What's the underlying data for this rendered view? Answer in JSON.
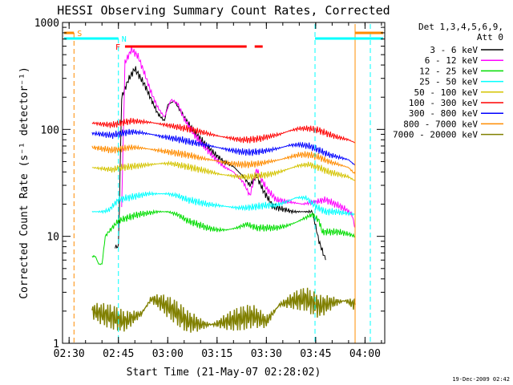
{
  "chart_data": {
    "type": "line",
    "title": "HESSI Observing Summary Count Rates, Corrected",
    "xlabel": "Start Time (21-May-07 02:28:02)",
    "ylabel": "Corrected Count Rate (s⁻¹ detector⁻¹)",
    "yscale": "log",
    "ylim": [
      1,
      1000
    ],
    "xlim": [
      "02:28",
      "04:06"
    ],
    "x_ticks": [
      "02:30",
      "02:45",
      "03:00",
      "03:15",
      "03:30",
      "03:45",
      "04:00"
    ],
    "y_ticks": [
      "1",
      "10",
      "100",
      "1000"
    ],
    "footer": "19-Dec-2009 02:42",
    "legend": {
      "placement": "right",
      "header": [
        "Det 1,3,4,5,6,9,",
        "Att 0"
      ],
      "entries": [
        {
          "label": "3 - 6 keV",
          "color": "#000000"
        },
        {
          "label": "6 - 12 keV",
          "color": "#ff00ff"
        },
        {
          "label": "12 - 25 keV",
          "color": "#00dd00"
        },
        {
          "label": "25 - 50 keV",
          "color": "#00ffff"
        },
        {
          "label": "50 - 100 keV",
          "color": "#d4c400"
        },
        {
          "label": "100 - 300 keV",
          "color": "#ff0000"
        },
        {
          "label": "300 - 800 keV",
          "color": "#0000ff"
        },
        {
          "label": "800 - 7000 keV",
          "color": "#ff8c00"
        },
        {
          "label": "7000 - 20000 keV",
          "color": "#808000"
        }
      ]
    },
    "annotations": [
      {
        "label": "S",
        "color": "#ff8c00",
        "x_start": "02:28",
        "x_end": "02:31"
      },
      {
        "label": "N",
        "color": "#00ffff",
        "x_start": "02:45",
        "x_end": "02:45"
      },
      {
        "label": "F",
        "color": "#ff0000",
        "x_start": "02:47",
        "x_end": "03:24"
      }
    ],
    "series": [
      {
        "name": "3 - 6 keV",
        "color": "#000000",
        "x": [
          "02:44",
          "02:45",
          "02:46",
          "02:48",
          "02:50",
          "02:51",
          "02:53",
          "02:55",
          "02:57",
          "02:59",
          "03:00",
          "03:02",
          "03:05",
          "03:08",
          "03:11",
          "03:14",
          "03:17",
          "03:20",
          "03:23",
          "03:25",
          "03:27",
          "03:29",
          "03:32",
          "03:35",
          "03:38",
          "03:41",
          "03:44",
          "03:46",
          "03:48"
        ],
        "y": [
          8,
          8,
          200,
          290,
          370,
          330,
          260,
          190,
          140,
          120,
          170,
          185,
          130,
          95,
          75,
          60,
          50,
          45,
          36,
          30,
          37,
          27,
          19,
          18,
          17,
          17,
          17,
          9,
          6
        ]
      },
      {
        "name": "6 - 12 keV",
        "color": "#ff00ff",
        "x": [
          "02:46",
          "02:47",
          "02:49",
          "02:51",
          "02:53",
          "02:55",
          "02:57",
          "02:59",
          "03:01",
          "03:03",
          "03:05",
          "03:08",
          "03:11",
          "03:14",
          "03:17",
          "03:20",
          "03:23",
          "03:25",
          "03:27",
          "03:30",
          "03:33",
          "03:37",
          "03:41",
          "03:45",
          "03:48",
          "03:51",
          "03:54",
          "03:56",
          "03:57"
        ],
        "y": [
          20,
          420,
          560,
          480,
          330,
          220,
          160,
          130,
          190,
          175,
          125,
          90,
          70,
          55,
          45,
          40,
          32,
          24,
          42,
          28,
          22,
          21,
          20,
          21,
          22,
          20,
          18,
          16,
          12
        ]
      },
      {
        "name": "12 - 25 keV",
        "color": "#00dd00",
        "x": [
          "02:37",
          "02:38",
          "02:39",
          "02:40",
          "02:41",
          "02:42",
          "02:45",
          "02:48",
          "02:51",
          "02:54",
          "02:57",
          "03:00",
          "03:03",
          "03:06",
          "03:09",
          "03:12",
          "03:15",
          "03:18",
          "03:21",
          "03:24",
          "03:27",
          "03:30",
          "03:33",
          "03:36",
          "03:39",
          "03:42",
          "03:44",
          "03:46",
          "03:47",
          "03:49",
          "03:52",
          "03:55",
          "03:57"
        ],
        "y": [
          6.5,
          6.5,
          5.5,
          5.5,
          10,
          11,
          14,
          15,
          16,
          16.5,
          17,
          17,
          16,
          14,
          13,
          12,
          11.5,
          11.5,
          12,
          13,
          12,
          12,
          12,
          12.5,
          13.5,
          15,
          16,
          14,
          11,
          11,
          11,
          10.5,
          10
        ]
      },
      {
        "name": "25 - 50 keV",
        "color": "#00ffff",
        "x": [
          "02:37",
          "02:40",
          "02:42",
          "02:45",
          "02:48",
          "02:51",
          "02:54",
          "02:57",
          "03:00",
          "03:03",
          "03:06",
          "03:09",
          "03:12",
          "03:15",
          "03:18",
          "03:21",
          "03:24",
          "03:27",
          "03:30",
          "03:33",
          "03:36",
          "03:39",
          "03:42",
          "03:45",
          "03:48",
          "03:51",
          "03:54",
          "03:57"
        ],
        "y": [
          17,
          17,
          17.5,
          22,
          23,
          24,
          25,
          25,
          25,
          24,
          22,
          21,
          20,
          19.5,
          19,
          18.5,
          18.5,
          19,
          19.5,
          19.5,
          21,
          23,
          23,
          19,
          17,
          17,
          16.5,
          16
        ]
      },
      {
        "name": "50 - 100 keV",
        "color": "#d4c400",
        "x": [
          "02:37",
          "02:40",
          "02:43",
          "02:46",
          "02:49",
          "02:52",
          "02:55",
          "02:58",
          "03:01",
          "03:04",
          "03:07",
          "03:10",
          "03:13",
          "03:16",
          "03:19",
          "03:22",
          "03:25",
          "03:28",
          "03:31",
          "03:34",
          "03:37",
          "03:40",
          "03:43",
          "03:46",
          "03:49",
          "03:52",
          "03:55",
          "03:57"
        ],
        "y": [
          44,
          43,
          42,
          44,
          45,
          46,
          47,
          48,
          48,
          46,
          44,
          42,
          40,
          38,
          37,
          36,
          36,
          37,
          38,
          40,
          43,
          46,
          47,
          44,
          40,
          38,
          36,
          33
        ]
      },
      {
        "name": "100 - 300 keV",
        "color": "#ff0000",
        "x": [
          "02:37",
          "02:40",
          "02:43",
          "02:46",
          "02:49",
          "02:52",
          "02:55",
          "02:58",
          "03:01",
          "03:04",
          "03:07",
          "03:10",
          "03:13",
          "03:16",
          "03:19",
          "03:22",
          "03:25",
          "03:28",
          "03:31",
          "03:34",
          "03:37",
          "03:40",
          "03:43",
          "03:46",
          "03:49",
          "03:52",
          "03:55",
          "03:57"
        ],
        "y": [
          115,
          112,
          110,
          115,
          120,
          118,
          116,
          112,
          108,
          104,
          100,
          95,
          90,
          86,
          83,
          80,
          80,
          82,
          86,
          90,
          97,
          102,
          102,
          98,
          90,
          84,
          80,
          75
        ]
      },
      {
        "name": "300 - 800 keV",
        "color": "#0000ff",
        "x": [
          "02:37",
          "02:40",
          "02:43",
          "02:46",
          "02:49",
          "02:52",
          "02:55",
          "02:58",
          "03:01",
          "03:04",
          "03:07",
          "03:10",
          "03:13",
          "03:16",
          "03:19",
          "03:22",
          "03:25",
          "03:28",
          "03:31",
          "03:34",
          "03:37",
          "03:40",
          "03:43",
          "03:46",
          "03:49",
          "03:52",
          "03:55",
          "03:57"
        ],
        "y": [
          92,
          90,
          88,
          92,
          95,
          93,
          90,
          86,
          83,
          80,
          76,
          73,
          70,
          67,
          64,
          62,
          61,
          62,
          64,
          67,
          71,
          72,
          70,
          64,
          58,
          55,
          52,
          46
        ]
      },
      {
        "name": "800 - 7000 keV",
        "color": "#ff8c00",
        "x": [
          "02:37",
          "02:40",
          "02:43",
          "02:46",
          "02:49",
          "02:52",
          "02:55",
          "02:58",
          "03:01",
          "03:04",
          "03:07",
          "03:10",
          "03:13",
          "03:16",
          "03:19",
          "03:22",
          "03:25",
          "03:28",
          "03:31",
          "03:34",
          "03:37",
          "03:40",
          "03:43",
          "03:46",
          "03:49",
          "03:52",
          "03:55",
          "03:57"
        ],
        "y": [
          68,
          66,
          64,
          66,
          68,
          67,
          65,
          63,
          61,
          59,
          57,
          54,
          52,
          50,
          48,
          47,
          47,
          48,
          50,
          52,
          55,
          58,
          58,
          55,
          50,
          47,
          44,
          38
        ]
      },
      {
        "name": "7000 - 20000 keV",
        "color": "#808000",
        "x": [
          "02:37",
          "02:42",
          "02:47",
          "02:52",
          "02:55",
          "02:58",
          "03:02",
          "03:06",
          "03:10",
          "03:14",
          "03:18",
          "03:22",
          "03:26",
          "03:30",
          "03:34",
          "03:38",
          "03:42",
          "03:46",
          "03:50",
          "03:54",
          "03:57"
        ],
        "y": [
          2,
          1.8,
          1.6,
          1.9,
          2.6,
          2.4,
          2,
          1.6,
          1.5,
          1.5,
          1.6,
          1.7,
          1.8,
          1.6,
          2.3,
          2.5,
          2.6,
          2.2,
          2.4,
          2.5,
          2.3
        ]
      }
    ]
  }
}
